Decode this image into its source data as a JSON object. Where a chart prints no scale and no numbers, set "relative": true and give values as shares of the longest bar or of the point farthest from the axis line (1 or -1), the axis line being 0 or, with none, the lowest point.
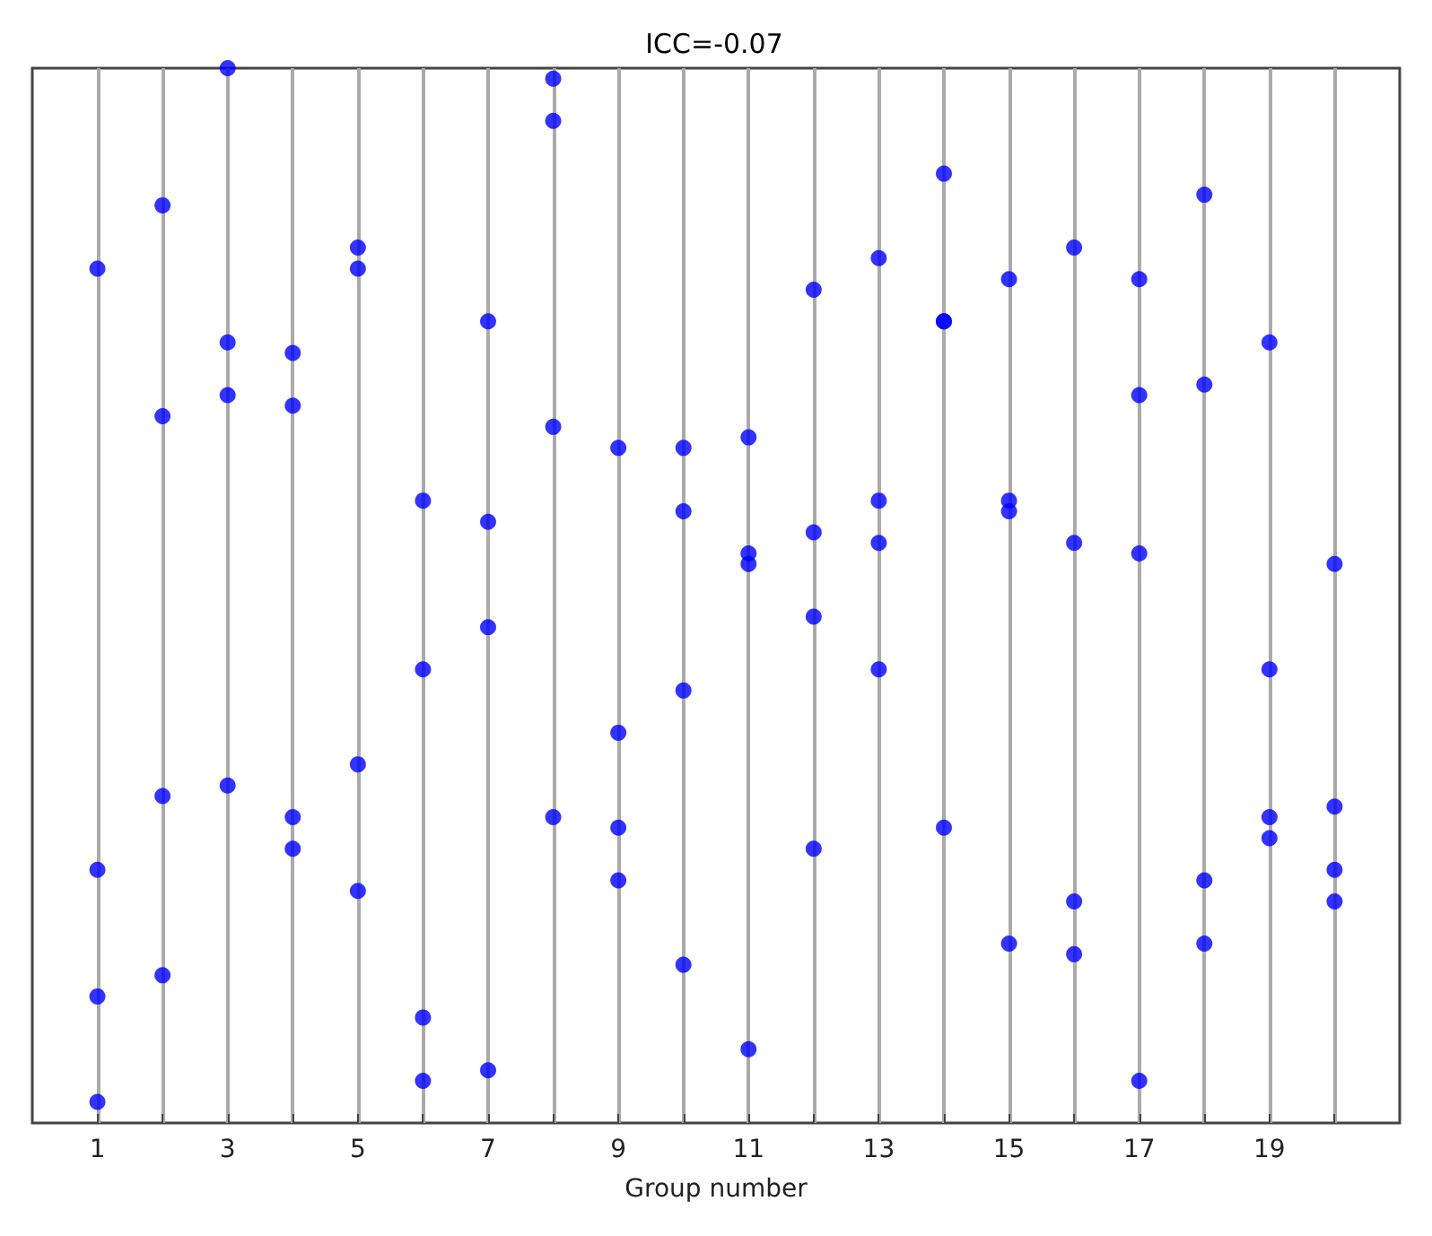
{
  "chart_data": {
    "type": "scatter",
    "title": "ICC=-0.07",
    "xlabel": "Group number",
    "relative": true,
    "xlim": [
      0,
      21
    ],
    "xticks": [
      1,
      {
        "value": 2,
        "label": null
      },
      3,
      {
        "value": 4,
        "label": null
      },
      5,
      {
        "value": 6,
        "label": null
      },
      7,
      {
        "value": 8,
        "label": null
      },
      9,
      {
        "value": 10,
        "label": null
      },
      11,
      {
        "value": 12,
        "label": null
      },
      13,
      {
        "value": 14,
        "label": null
      },
      15,
      {
        "value": 16,
        "label": null
      },
      17,
      {
        "value": 18,
        "label": null
      },
      19,
      {
        "value": 20,
        "label": null
      }
    ],
    "tick_labels": "x",
    "grid": "x",
    "marker": "circle",
    "series": [
      {
        "color": "#0000ff",
        "x": [
          1,
          1,
          1,
          1,
          2,
          2,
          2,
          2,
          3,
          3,
          3,
          3,
          4,
          4,
          4,
          4,
          5,
          5,
          5,
          5,
          6,
          6,
          6,
          6,
          7,
          7,
          7,
          7,
          8,
          8,
          8,
          8,
          9,
          9,
          9,
          9,
          10,
          10,
          10,
          10,
          11,
          11,
          11,
          11,
          12,
          12,
          12,
          12,
          13,
          13,
          13,
          13,
          14,
          14,
          14,
          14,
          15,
          15,
          15,
          15,
          16,
          16,
          16,
          16,
          17,
          17,
          17,
          17,
          18,
          18,
          18,
          18,
          19,
          19,
          19,
          19,
          20,
          20,
          20,
          20
        ],
        "values": [
          0.81,
          0.24,
          0.12,
          0.02,
          0.87,
          0.67,
          0.31,
          0.14,
          1.0,
          0.74,
          0.69,
          0.32,
          0.73,
          0.68,
          0.29,
          0.26,
          0.83,
          0.81,
          0.34,
          0.22,
          0.59,
          0.43,
          0.1,
          0.04,
          0.76,
          0.57,
          0.47,
          0.05,
          0.99,
          0.95,
          0.66,
          0.29,
          0.64,
          0.37,
          0.28,
          0.23,
          0.64,
          0.58,
          0.41,
          0.15,
          0.65,
          0.54,
          0.53,
          0.07,
          0.79,
          0.56,
          0.48,
          0.26,
          0.82,
          0.59,
          0.55,
          0.43,
          0.9,
          0.76,
          0.76,
          0.28,
          0.8,
          0.59,
          0.58,
          0.17,
          0.83,
          0.55,
          0.21,
          0.16,
          0.8,
          0.69,
          0.54,
          0.04,
          0.88,
          0.7,
          0.23,
          0.17,
          0.74,
          0.43,
          0.29,
          0.27,
          0.53,
          0.3,
          0.24,
          0.21
        ]
      }
    ]
  }
}
